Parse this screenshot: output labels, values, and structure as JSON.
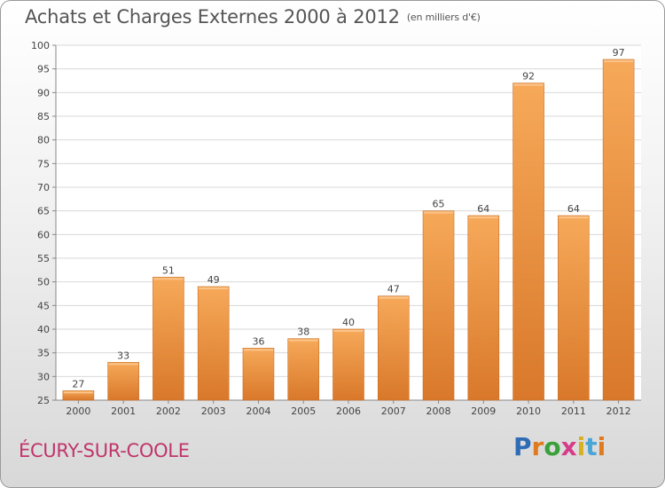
{
  "title": "Achats et Charges Externes 2000 à 2012",
  "subtitle": "(en milliers d'€)",
  "city": "ÉCURY-SUR-COOLE",
  "logo": {
    "letters": [
      "P",
      "r",
      "o",
      "x",
      "i",
      "t",
      "i"
    ],
    "colors": [
      "#2e6db5",
      "#e07a1f",
      "#3aa03a",
      "#d63c8a",
      "#d8b020",
      "#4aa6d6",
      "#e07a1f"
    ]
  },
  "colors": {
    "bar": "#f09a43",
    "bar_light": "#f8b66b",
    "bar_dark": "#d4782a",
    "city": "#c0356b"
  },
  "chart_data": {
    "type": "bar",
    "title": "Achats et Charges Externes 2000 à 2012",
    "subtitle": "(en milliers d'€)",
    "categories": [
      "2000",
      "2001",
      "2002",
      "2003",
      "2004",
      "2005",
      "2006",
      "2007",
      "2008",
      "2009",
      "2010",
      "2011",
      "2012"
    ],
    "values": [
      27,
      33,
      51,
      49,
      36,
      38,
      40,
      47,
      65,
      64,
      92,
      64,
      97
    ],
    "ylim": [
      25,
      100
    ],
    "yticks": [
      25,
      30,
      35,
      40,
      45,
      50,
      55,
      60,
      65,
      70,
      75,
      80,
      85,
      90,
      95,
      100
    ],
    "grid": true,
    "data_labels": true
  }
}
